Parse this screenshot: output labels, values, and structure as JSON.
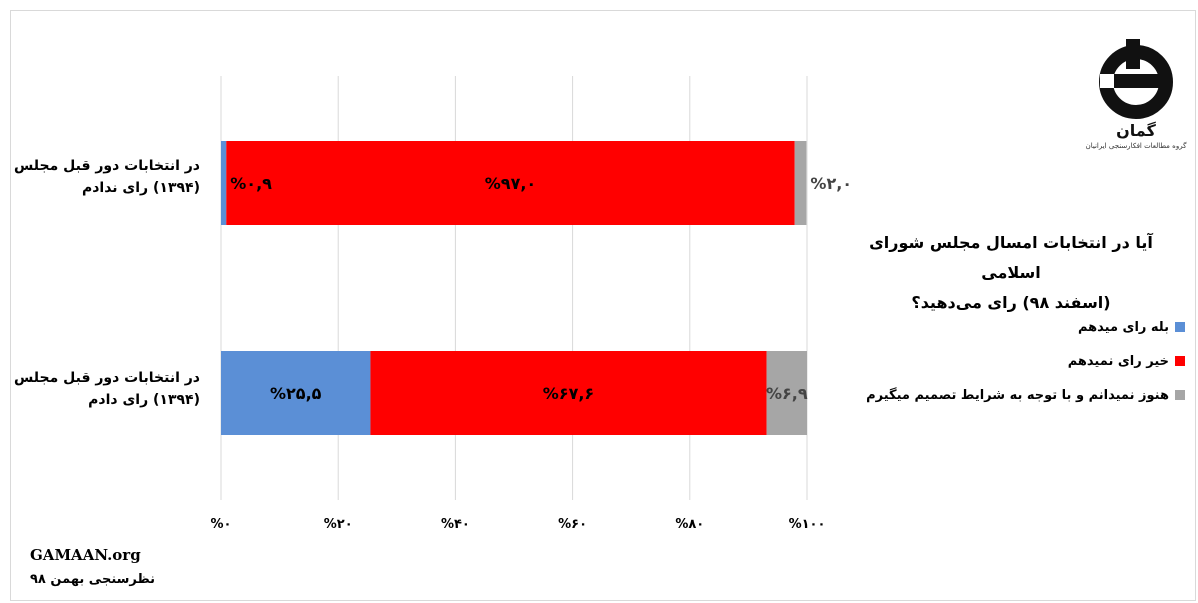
{
  "chart_data": {
    "type": "bar",
    "stacked": true,
    "orientation": "horizontal",
    "title": "آیا در انتخابات امسال مجلس شورای اسلامی (اسفند ۹۸) رای می‌دهید؟",
    "title_lines": [
      "آیا در انتخابات امسال مجلس شورای اسلامی",
      "(اسفند ۹۸) رای می‌دهید؟"
    ],
    "categories": [
      "در انتخابات دور قبل مجلس (۱۳۹۴) رای ندادم",
      "در انتخابات دور قبل مجلس (۱۳۹۴) رای دادم"
    ],
    "category_lines": [
      [
        "در انتخابات دور قبل مجلس",
        "(۱۳۹۴) رای ندادم"
      ],
      [
        "در انتخابات دور قبل مجلس",
        "(۱۳۹۴) رای دادم"
      ]
    ],
    "series": [
      {
        "name": "بله رای میدهم",
        "color": "#5b8fd6",
        "values": [
          0.9,
          25.5
        ],
        "labels": [
          "%۰,۹",
          "%۲۵,۵"
        ]
      },
      {
        "name": "خیر رای نمیدهم",
        "color": "#ff0000",
        "values": [
          97.0,
          67.6
        ],
        "labels": [
          "%۹۷,۰",
          "%۶۷,۶"
        ]
      },
      {
        "name": "هنوز نمیدانم و با توجه به شرایط تصمیم میگیرم",
        "color": "#a6a6a6",
        "values": [
          2.0,
          6.9
        ],
        "labels": [
          "%۲,۰",
          "%۶,۹"
        ]
      }
    ],
    "xlim": [
      0,
      100
    ],
    "x_ticks": [
      0,
      20,
      40,
      60,
      80,
      100
    ],
    "x_tick_labels": [
      "%۰",
      "%۲۰",
      "%۴۰",
      "%۶۰",
      "%۸۰",
      "%۱۰۰"
    ],
    "grid": true,
    "legend_position": "right"
  },
  "logo": {
    "wordmark": "گمان",
    "subtitle": "گروه مطالعات افکارسنجی ایرانیان"
  },
  "source": {
    "site": "GAMAAN.org",
    "date": "نظرسنجی بهمن ۹۸"
  }
}
